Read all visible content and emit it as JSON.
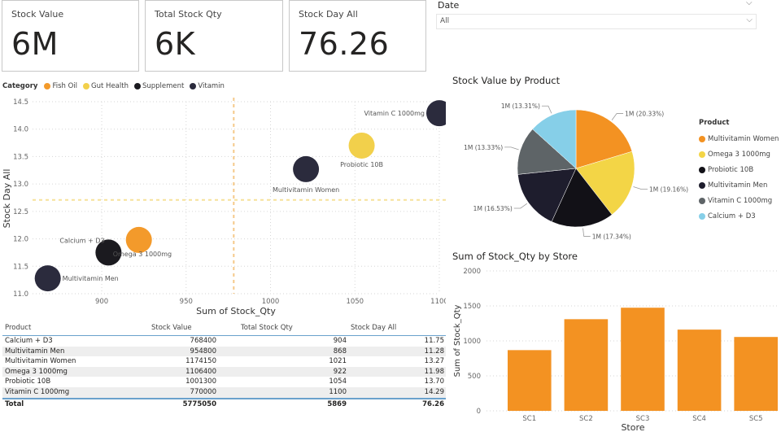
{
  "cards": [
    {
      "label": "Stock Value",
      "value": "6M"
    },
    {
      "label": "Total Stock Qty",
      "value": "6K"
    },
    {
      "label": "Stock Day All",
      "value": "76.26"
    }
  ],
  "slicer": {
    "title": "Date",
    "value": "All",
    "chevron": "⌵"
  },
  "scatter_legend": {
    "title": "Category",
    "items": [
      {
        "label": "Fish Oil",
        "color": "#F39A2B"
      },
      {
        "label": "Gut Health",
        "color": "#F2D04B"
      },
      {
        "label": "Supplement",
        "color": "#1B1A1F"
      },
      {
        "label": "Vitamin",
        "color": "#2B2B3D"
      }
    ]
  },
  "table": {
    "headers": [
      "Product",
      "Stock Value",
      "Total Stock Qty",
      "Stock Day All"
    ],
    "rows": [
      [
        "Calcium + D3",
        "768400",
        "904",
        "11.75"
      ],
      [
        "Multivitamin Men",
        "954800",
        "868",
        "11.28"
      ],
      [
        "Multivitamin Women",
        "1174150",
        "1021",
        "13.27"
      ],
      [
        "Omega 3 1000mg",
        "1106400",
        "922",
        "11.98"
      ],
      [
        "Probiotic 10B",
        "1001300",
        "1054",
        "13.70"
      ],
      [
        "Vitamin C 1000mg",
        "770000",
        "1100",
        "14.29"
      ]
    ],
    "total": [
      "Total",
      "5775050",
      "5869",
      "76.26"
    ]
  },
  "chart_data": [
    {
      "type": "scatter",
      "title": "",
      "xlabel": "Sum of Stock_Qty",
      "ylabel": "Stock Day All",
      "xlim": [
        859,
        1100
      ],
      "ylim": [
        11.0,
        14.5
      ],
      "xticks": [
        "900",
        "950",
        "1000",
        "1050",
        "1100"
      ],
      "yticks": [
        "11.0",
        "11.5",
        "12.0",
        "12.5",
        "13.0",
        "13.5",
        "14.0",
        "14.5"
      ],
      "grid": true,
      "average_lines": {
        "x": 978.2,
        "y": 12.71
      },
      "points": [
        {
          "label": "Calcium + D3",
          "x": 904,
          "y": 11.75,
          "category": "Supplement",
          "color": "#1B1A1F"
        },
        {
          "label": "Multivitamin Men",
          "x": 868,
          "y": 11.28,
          "category": "Vitamin",
          "color": "#2B2B3D"
        },
        {
          "label": "Multivitamin Women",
          "x": 1021,
          "y": 13.27,
          "category": "Vitamin",
          "color": "#2B2B3D"
        },
        {
          "label": "Omega 3 1000mg",
          "x": 922,
          "y": 11.98,
          "category": "Fish Oil",
          "color": "#F39A2B"
        },
        {
          "label": "Probiotic 10B",
          "x": 1054,
          "y": 13.7,
          "category": "Gut Health",
          "color": "#F2D04B"
        },
        {
          "label": "Vitamin C 1000mg",
          "x": 1100,
          "y": 14.29,
          "category": "Vitamin",
          "color": "#2B2B3D"
        }
      ],
      "legend": "top-left"
    },
    {
      "type": "pie",
      "title": "Stock Value by Product",
      "legend_title": "Product",
      "legend": "right",
      "slices": [
        {
          "label": "Multivitamin Women",
          "value": 1174150,
          "data_label": "1M (20.33%)",
          "color": "#F39222"
        },
        {
          "label": "Omega 3 1000mg",
          "value": 1106400,
          "data_label": "1M (19.16%)",
          "color": "#F3D546"
        },
        {
          "label": "Probiotic 10B",
          "value": 1001300,
          "data_label": "1M (17.34%)",
          "color": "#121117"
        },
        {
          "label": "Multivitamin Men",
          "value": 954800,
          "data_label": "1M (16.53%)",
          "color": "#1E1D2D"
        },
        {
          "label": "Vitamin C 1000mg",
          "value": 770000,
          "data_label": "1M (13.33%)",
          "color": "#5E6467"
        },
        {
          "label": "Calcium + D3",
          "value": 768400,
          "data_label": "1M (13.31%)",
          "color": "#86CFE8"
        }
      ]
    },
    {
      "type": "bar",
      "title": "Sum of Stock_Qty by Store",
      "xlabel": "Store",
      "ylabel": "Sum of Stock_Qty",
      "categories": [
        "SC1",
        "SC2",
        "SC3",
        "SC4",
        "SC5"
      ],
      "values": [
        868,
        1310,
        1474,
        1161,
        1056
      ],
      "ylim": [
        0,
        2000
      ],
      "yticks": [
        "0",
        "500",
        "1000",
        "1500",
        "2000"
      ],
      "color": "#F39222",
      "grid": true
    }
  ]
}
